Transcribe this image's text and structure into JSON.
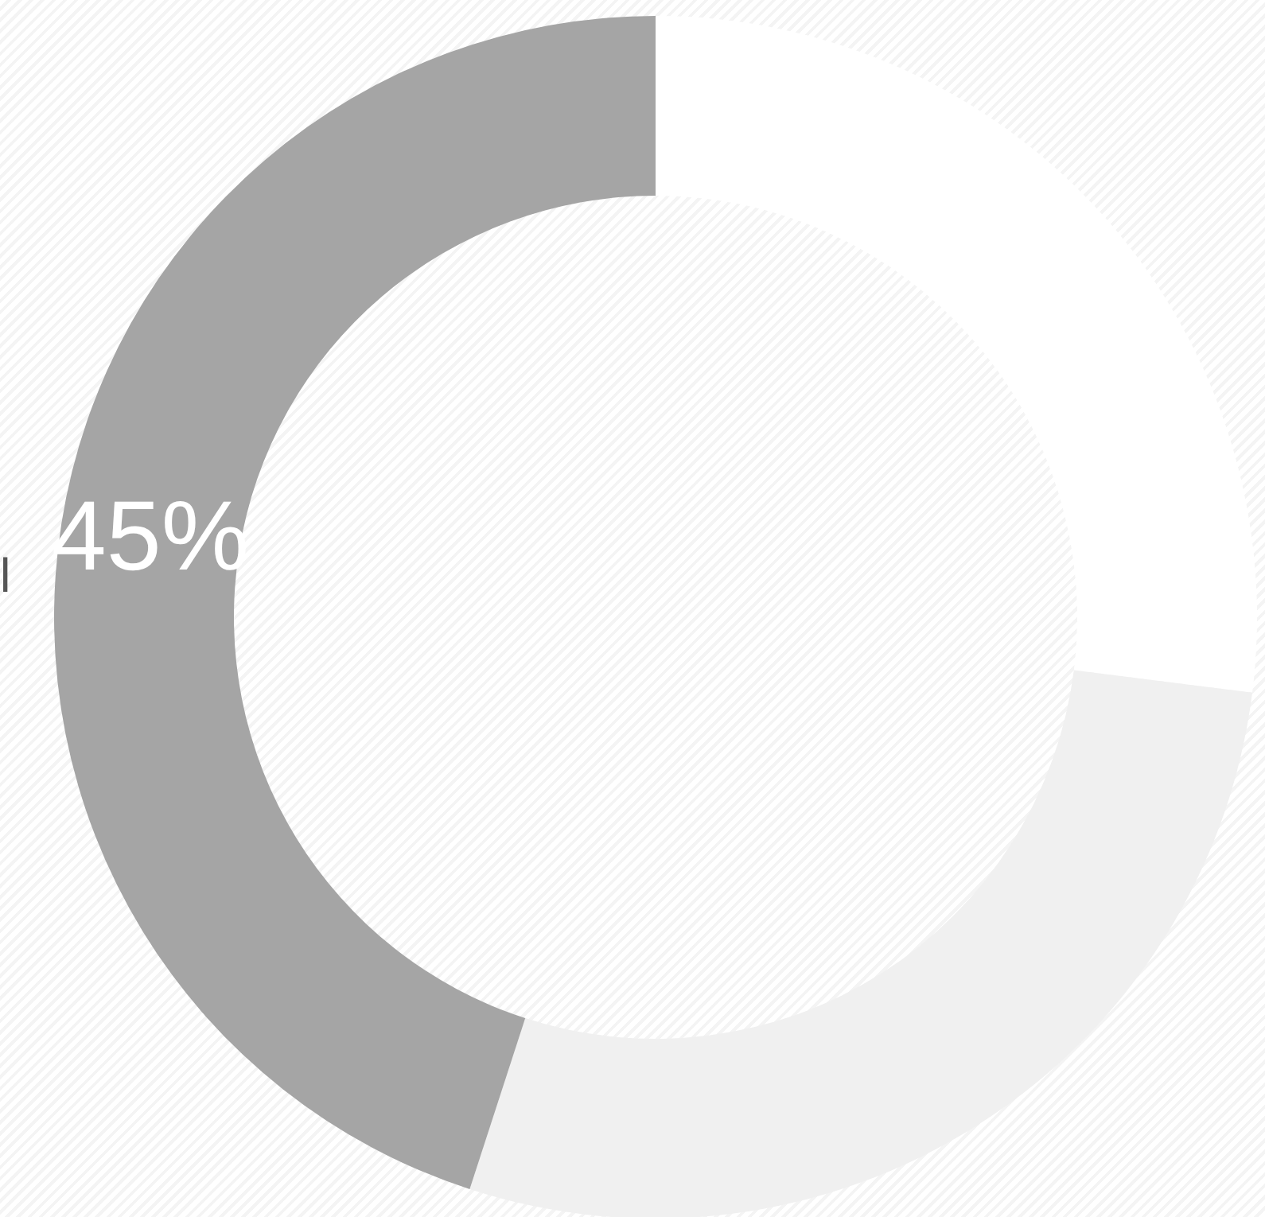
{
  "chart_data": {
    "type": "donut",
    "categories": [
      null,
      null,
      null
    ],
    "values": [
      27,
      28,
      45
    ],
    "colors": [
      "#ffffff",
      "#f0f0f0",
      "#a5a5a5"
    ],
    "value_labels": [
      null,
      null,
      "45%"
    ],
    "annotations": [
      "l"
    ]
  }
}
